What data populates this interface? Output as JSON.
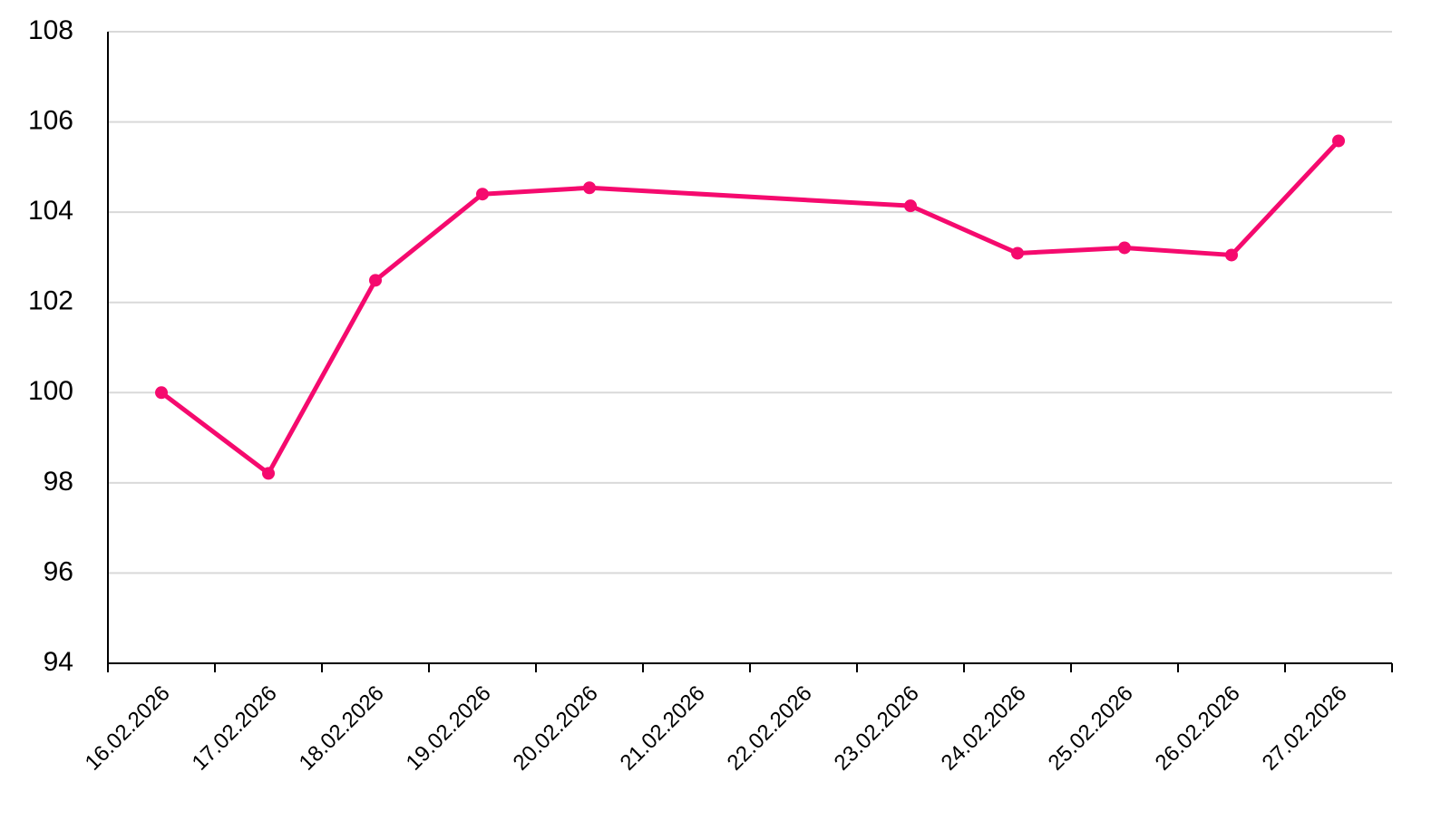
{
  "chart_data": {
    "type": "line",
    "categories": [
      "16.02.2026",
      "17.02.2026",
      "18.02.2026",
      "19.02.2026",
      "20.02.2026",
      "21.02.2026",
      "22.02.2026",
      "23.02.2026",
      "24.02.2026",
      "25.02.2026",
      "26.02.2026",
      "27.02.2026"
    ],
    "series": [
      {
        "color": "#f50a6e",
        "values": [
          100,
          98.21,
          102.49,
          104.4,
          104.54,
          null,
          null,
          104.14,
          103.09,
          103.21,
          103.05,
          105.58
        ]
      }
    ],
    "span_gaps": true,
    "ylim": [
      94,
      108
    ],
    "yticks": [
      94,
      96,
      98,
      100,
      102,
      104,
      106,
      108
    ],
    "grid": true
  }
}
